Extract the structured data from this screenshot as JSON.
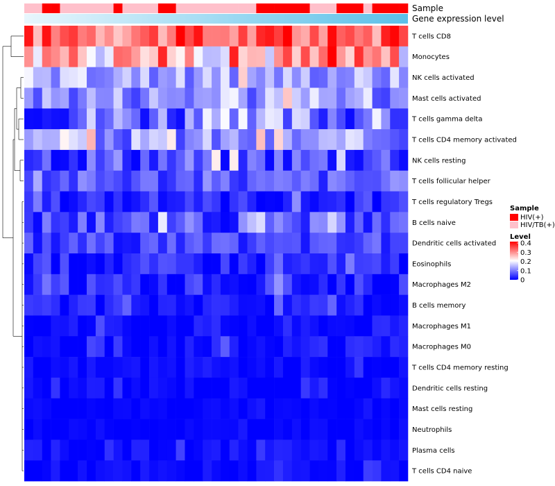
{
  "chart_data": {
    "type": "heatmap",
    "annotation_labels": {
      "sample": "Sample",
      "gene_expression": "Gene expression level"
    },
    "rows": [
      "T cells CD8",
      "Monocytes",
      "NK cells activated",
      "Mast cells activated",
      "T cells gamma delta",
      "T cells CD4 memory activated",
      "NK cells resting",
      "T cells follicular helper",
      "T cells regulatory  Tregs",
      "B cells naive",
      "Dendritic cells activated",
      "Eosinophils",
      "Macrophages M2",
      "B cells memory",
      "Macrophages M1",
      "Macrophages M0",
      "T cells CD4 memory resting",
      "Dendritic cells resting",
      "Mast cells resting",
      "Neutrophils",
      "Plasma cells",
      "T cells CD4 naive"
    ],
    "n_columns": 43,
    "row_profiles": [
      {
        "row": "T cells CD8",
        "base": 0.32,
        "amp": 0.08
      },
      {
        "row": "Monocytes",
        "base": 0.26,
        "amp": 0.12
      },
      {
        "row": "NK cells activated",
        "base": 0.13,
        "amp": 0.06
      },
      {
        "row": "Mast cells activated",
        "base": 0.12,
        "amp": 0.07
      },
      {
        "row": "T cells gamma delta",
        "base": 0.1,
        "amp": 0.1
      },
      {
        "row": "T cells CD4 memory activated",
        "base": 0.11,
        "amp": 0.07
      },
      {
        "row": "NK cells resting",
        "base": 0.07,
        "amp": 0.07
      },
      {
        "row": "T cells follicular helper",
        "base": 0.07,
        "amp": 0.05
      },
      {
        "row": "T cells regulatory  Tregs",
        "base": 0.03,
        "amp": 0.04
      },
      {
        "row": "B cells naive",
        "base": 0.06,
        "amp": 0.06
      },
      {
        "row": "Dendritic cells activated",
        "base": 0.05,
        "amp": 0.04
      },
      {
        "row": "Eosinophils",
        "base": 0.03,
        "amp": 0.04
      },
      {
        "row": "Macrophages M2",
        "base": 0.03,
        "amp": 0.04
      },
      {
        "row": "B cells memory",
        "base": 0.02,
        "amp": 0.03
      },
      {
        "row": "Macrophages M1",
        "base": 0.01,
        "amp": 0.03
      },
      {
        "row": "Macrophages M0",
        "base": 0.01,
        "amp": 0.03
      },
      {
        "row": "T cells CD4 memory resting",
        "base": 0.005,
        "amp": 0.02
      },
      {
        "row": "Dendritic cells resting",
        "base": 0.005,
        "amp": 0.02
      },
      {
        "row": "Mast cells resting",
        "base": 0.003,
        "amp": 0.01
      },
      {
        "row": "Neutrophils",
        "base": 0.003,
        "amp": 0.01
      },
      {
        "row": "Plasma cells",
        "base": 0.01,
        "amp": 0.02
      },
      {
        "row": "T cells CD4 naive",
        "base": 0.005,
        "amp": 0.02
      }
    ],
    "sample_annotation": [
      "HIV/TB(+)",
      "HIV/TB(+)",
      "HIV(+)",
      "HIV(+)",
      "HIV/TB(+)",
      "HIV/TB(+)",
      "HIV/TB(+)",
      "HIV/TB(+)",
      "HIV/TB(+)",
      "HIV/TB(+)",
      "HIV(+)",
      "HIV/TB(+)",
      "HIV/TB(+)",
      "HIV/TB(+)",
      "HIV/TB(+)",
      "HIV(+)",
      "HIV(+)",
      "HIV/TB(+)",
      "HIV/TB(+)",
      "HIV/TB(+)",
      "HIV/TB(+)",
      "HIV/TB(+)",
      "HIV/TB(+)",
      "HIV/TB(+)",
      "HIV/TB(+)",
      "HIV/TB(+)",
      "HIV(+)",
      "HIV(+)",
      "HIV(+)",
      "HIV(+)",
      "HIV(+)",
      "HIV(+)",
      "HIV/TB(+)",
      "HIV/TB(+)",
      "HIV/TB(+)",
      "HIV(+)",
      "HIV(+)",
      "HIV(+)",
      "HIV/TB(+)",
      "HIV(+)",
      "HIV(+)",
      "HIV(+)",
      "HIV(+)"
    ],
    "legend": {
      "sample_title": "Sample",
      "sample_entries": [
        {
          "label": "HIV(+)",
          "color": "#ff0000"
        },
        {
          "label": "HIV/TB(+)",
          "color": "#ffc0cb"
        }
      ],
      "level_title": "Level",
      "level_ticks": [
        "0.4",
        "0.3",
        "0.2",
        "0.1",
        "0"
      ],
      "range": [
        0,
        0.4
      ]
    },
    "colors": {
      "low": "#0000ff",
      "mid": "#ffffff",
      "high": "#ff0000",
      "expr_left": "#e8f6fd",
      "expr_right": "#5bc0e8"
    }
  }
}
